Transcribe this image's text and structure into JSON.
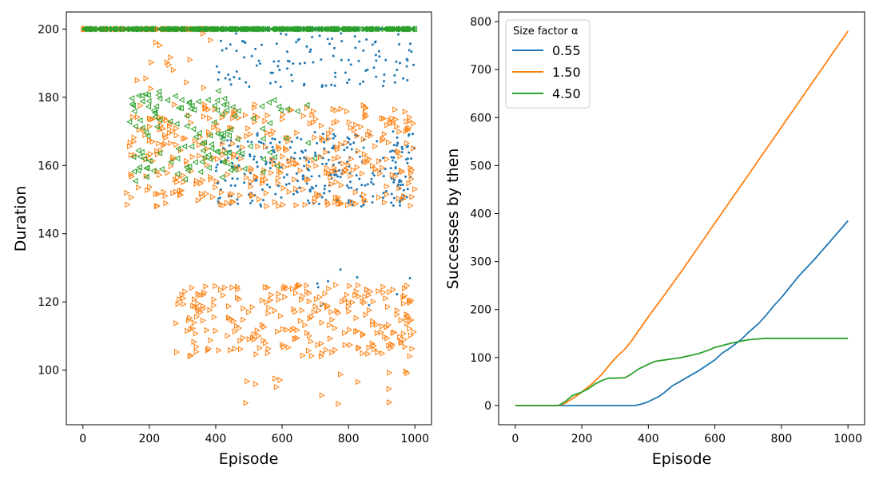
{
  "chart_data": [
    {
      "type": "scatter",
      "xlabel": "Episode",
      "ylabel": "Duration",
      "xlim": [
        -50,
        1050
      ],
      "ylim": [
        84,
        205
      ],
      "xticks": [
        "0",
        "200",
        "400",
        "600",
        "800",
        "1000"
      ],
      "xtick_values": [
        0,
        200,
        400,
        600,
        800,
        1000
      ],
      "yticks": [
        "100",
        "120",
        "140",
        "160",
        "180",
        "200"
      ],
      "ytick_values": [
        100,
        120,
        140,
        160,
        180,
        200
      ],
      "series": [
        {
          "name": "0.55",
          "color": "#1f77b4",
          "marker": "dot",
          "note": "duration 200 (timeout) for every episode up to about 400; scattered shorter durations from about 400 to 1000",
          "clusters": [
            {
              "x_range": [
                0,
                1000
              ],
              "y": 200,
              "points": 300
            },
            {
              "x_range": [
                400,
                1000
              ],
              "y_range": [
                183,
                199
              ],
              "points": 120
            },
            {
              "x_range": [
                400,
                1000
              ],
              "y_range": [
                148,
                170
              ],
              "points": 300
            },
            {
              "x_range": [
                700,
                1000
              ],
              "y_range": [
                118,
                130
              ],
              "points": 10
            }
          ]
        },
        {
          "name": "1.50",
          "color": "#ff7f0e",
          "marker": "triangle-right",
          "note": "durations split into an upper band (150-175) and, from about 280 on, a lower band (104-125)",
          "clusters": [
            {
              "x_range": [
                0,
                400
              ],
              "y": 200,
              "points": 100
            },
            {
              "x_range": [
                160,
                400
              ],
              "y_range": [
                182,
                199
              ],
              "points": 15
            },
            {
              "x_range": [
                130,
                1000
              ],
              "y_range": [
                148,
                178
              ],
              "points": 380
            },
            {
              "x_range": [
                280,
                1000
              ],
              "y_range": [
                104,
                125
              ],
              "points": 260
            },
            {
              "x_range": [
                450,
                1000
              ],
              "y_range": [
                89,
                100
              ],
              "points": 15
            }
          ]
        },
        {
          "name": "4.50",
          "color": "#2ca02c",
          "marker": "triangle-left",
          "note": "early successes between about 140 and 700, then always 200 (timeout)",
          "clusters": [
            {
              "x_range": [
                0,
                1000
              ],
              "y": 200,
              "points": 400
            },
            {
              "x_range": [
                140,
                450
              ],
              "y_range": [
                155,
                182
              ],
              "points": 90
            },
            {
              "x_range": [
                300,
                700
              ],
              "y_range": [
                158,
                180
              ],
              "points": 50
            }
          ]
        }
      ]
    },
    {
      "type": "line",
      "xlabel": "Episode",
      "ylabel": "Successes by then",
      "xlim": [
        -50,
        1050
      ],
      "ylim": [
        -40,
        820
      ],
      "xticks": [
        "0",
        "200",
        "400",
        "600",
        "800",
        "1000"
      ],
      "xtick_values": [
        0,
        200,
        400,
        600,
        800,
        1000
      ],
      "yticks": [
        "0",
        "100",
        "200",
        "300",
        "400",
        "500",
        "600",
        "700",
        "800"
      ],
      "ytick_values": [
        0,
        100,
        200,
        300,
        400,
        500,
        600,
        700,
        800
      ],
      "legend": {
        "title": "Size factor α",
        "position": "top-left"
      },
      "series": [
        {
          "name": "0.55",
          "color": "#1f77b4",
          "x": [
            0,
            100,
            200,
            300,
            360,
            380,
            400,
            430,
            450,
            470,
            500,
            550,
            600,
            620,
            650,
            680,
            700,
            730,
            750,
            780,
            800,
            850,
            900,
            950,
            1000
          ],
          "y": [
            0,
            0,
            0,
            0,
            0,
            3,
            8,
            18,
            28,
            40,
            52,
            72,
            95,
            108,
            122,
            138,
            152,
            170,
            185,
            210,
            225,
            268,
            305,
            345,
            385
          ]
        },
        {
          "name": "1.50",
          "color": "#ff7f0e",
          "x": [
            0,
            100,
            130,
            150,
            180,
            200,
            230,
            260,
            280,
            300,
            330,
            350,
            400,
            450,
            500,
            600,
            700,
            800,
            900,
            1000
          ],
          "y": [
            0,
            0,
            0,
            5,
            18,
            28,
            45,
            65,
            82,
            98,
            118,
            135,
            185,
            232,
            280,
            380,
            480,
            580,
            680,
            780
          ]
        },
        {
          "name": "4.50",
          "color": "#2ca02c",
          "x": [
            0,
            100,
            130,
            150,
            170,
            200,
            220,
            240,
            260,
            280,
            300,
            330,
            350,
            370,
            400,
            420,
            450,
            480,
            500,
            550,
            580,
            600,
            650,
            700,
            750,
            800,
            900,
            1000
          ],
          "y": [
            0,
            0,
            0,
            8,
            20,
            28,
            35,
            45,
            52,
            57,
            57,
            58,
            66,
            76,
            86,
            92,
            95,
            98,
            100,
            108,
            115,
            121,
            130,
            137,
            140,
            140,
            140,
            140
          ]
        }
      ]
    }
  ]
}
